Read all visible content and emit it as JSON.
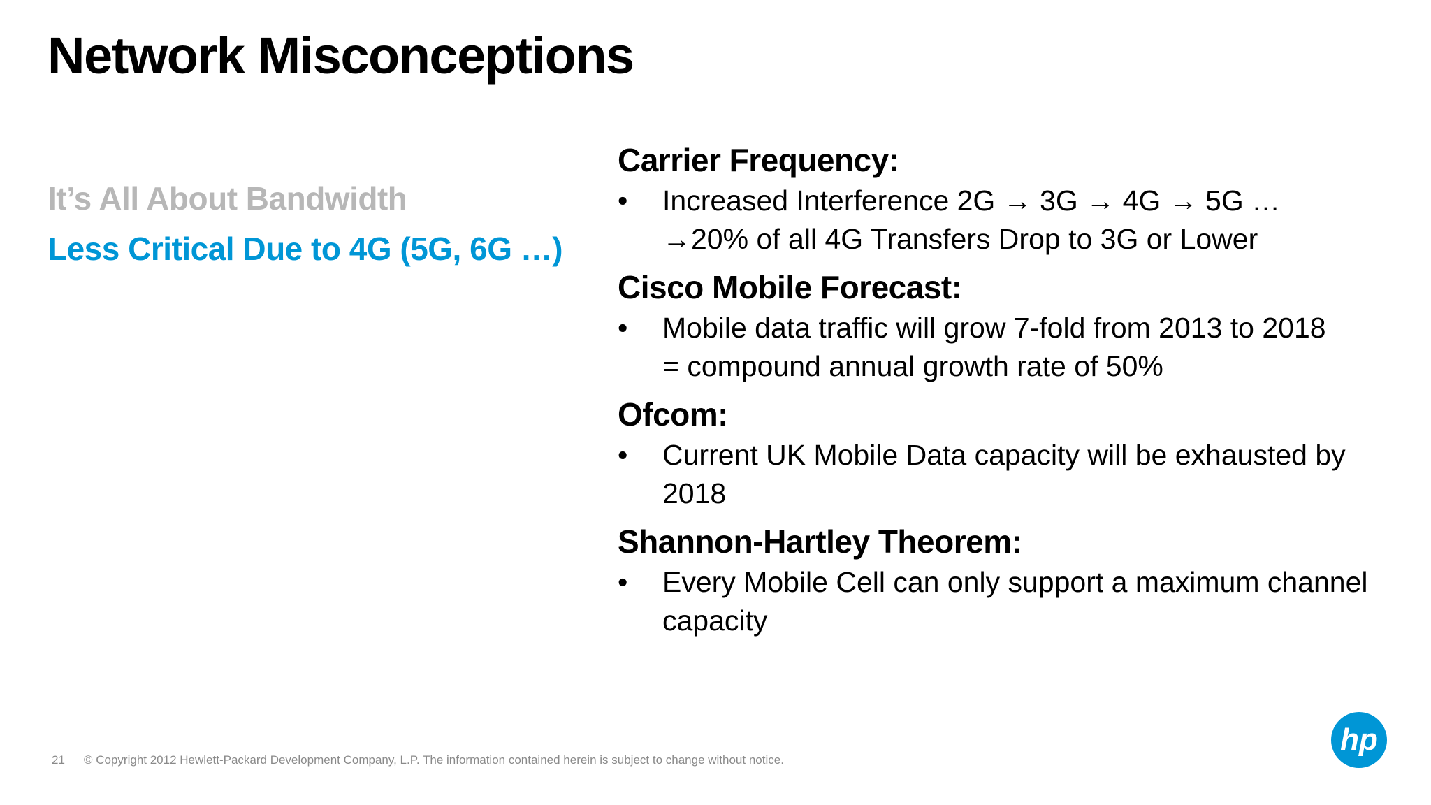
{
  "slide": {
    "title": "Network Misconceptions",
    "left_items": [
      {
        "label": "It’s All About Bandwidth",
        "state": "inactive"
      },
      {
        "label": "Less Critical Due to 4G (5G, 6G …)",
        "state": "active"
      }
    ],
    "sections": [
      {
        "heading": "Carrier Frequency:",
        "bullets": [
          "Increased Interference 2G → 3G → 4G → 5G …\n→20% of all 4G Transfers Drop to 3G or Lower"
        ]
      },
      {
        "heading": "Cisco Mobile Forecast:",
        "bullets": [
          "Mobile data traffic will grow 7-fold from 2013 to 2018\n= compound annual growth rate of 50%"
        ]
      },
      {
        "heading": "Ofcom:",
        "bullets": [
          "Current UK Mobile Data capacity will be exhausted by 2018"
        ]
      },
      {
        "heading": "Shannon-Hartley Theorem:",
        "bullets": [
          "Every Mobile Cell can only support a maximum channel capacity"
        ]
      }
    ],
    "bullet_symbol": "•"
  },
  "footer": {
    "page_number": "21",
    "copyright": "© Copyright 2012 Hewlett-Packard Development Company, L.P.  The information contained herein is subject to change without notice."
  },
  "logo": {
    "icon": "hp-logo-icon",
    "text": "hp"
  },
  "colors": {
    "accent": "#0096d6",
    "inactive": "#b7b7b7",
    "footer": "#8a8a8a"
  }
}
